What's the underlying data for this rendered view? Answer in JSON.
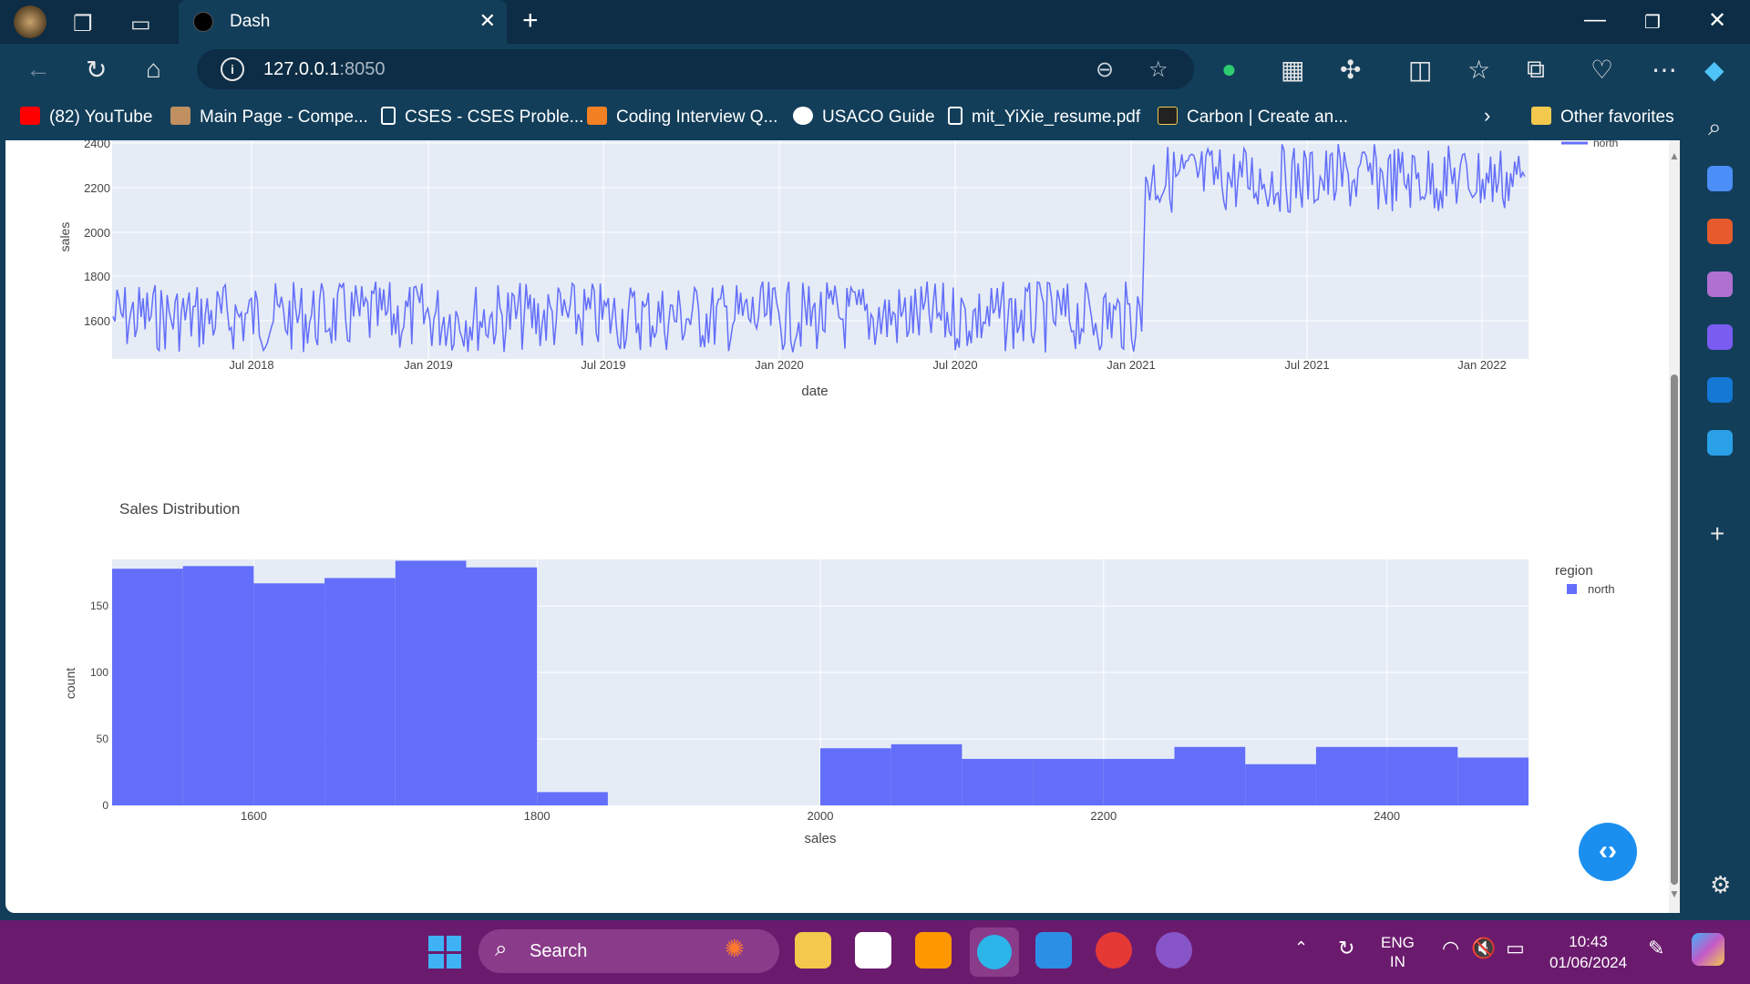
{
  "browser": {
    "tab_title": "Dash",
    "url_host": "127.0.0.1",
    "url_port": ":8050",
    "bookmarks": [
      {
        "label": "(82) YouTube",
        "color": "#ff0000"
      },
      {
        "label": "Main Page - Compe...",
        "color": "#c09060"
      },
      {
        "label": "CSES - CSES Proble...",
        "color": "#ffffff"
      },
      {
        "label": "Coding Interview Q...",
        "color": "#f48024"
      },
      {
        "label": "USACO Guide",
        "color": "#ffffff"
      },
      {
        "label": "mit_YiXie_resume.pdf",
        "color": "#ffffff"
      },
      {
        "label": "Carbon | Create an...",
        "color": "#f2c94c"
      }
    ],
    "other_favorites": "Other favorites"
  },
  "top_chart": {
    "ylabel": "sales",
    "xlabel": "date",
    "legend_item": "north",
    "y_ticks": [
      "2400",
      "2200",
      "2000",
      "1800",
      "1600"
    ],
    "x_ticks": [
      "Jul 2018",
      "Jan 2019",
      "Jul 2019",
      "Jan 2020",
      "Jul 2020",
      "Jan 2021",
      "Jul 2021",
      "Jan 2022"
    ]
  },
  "chart_data": {
    "type": "bar",
    "title": "Sales Distribution",
    "xlabel": "sales",
    "ylabel": "count",
    "legend_title": "region",
    "series": [
      {
        "name": "north",
        "color": "#636efa"
      }
    ],
    "bins": [
      {
        "x0": 1500,
        "x1": 1550,
        "count": 178
      },
      {
        "x0": 1550,
        "x1": 1600,
        "count": 180
      },
      {
        "x0": 1600,
        "x1": 1650,
        "count": 167
      },
      {
        "x0": 1650,
        "x1": 1700,
        "count": 171
      },
      {
        "x0": 1700,
        "x1": 1750,
        "count": 184
      },
      {
        "x0": 1750,
        "x1": 1800,
        "count": 179
      },
      {
        "x0": 1800,
        "x1": 1850,
        "count": 10
      },
      {
        "x0": 1850,
        "x1": 1900,
        "count": 0
      },
      {
        "x0": 1900,
        "x1": 1950,
        "count": 0
      },
      {
        "x0": 1950,
        "x1": 2000,
        "count": 0
      },
      {
        "x0": 2000,
        "x1": 2050,
        "count": 43
      },
      {
        "x0": 2050,
        "x1": 2100,
        "count": 46
      },
      {
        "x0": 2100,
        "x1": 2150,
        "count": 35
      },
      {
        "x0": 2150,
        "x1": 2200,
        "count": 35
      },
      {
        "x0": 2200,
        "x1": 2250,
        "count": 35
      },
      {
        "x0": 2250,
        "x1": 2300,
        "count": 44
      },
      {
        "x0": 2300,
        "x1": 2350,
        "count": 31
      },
      {
        "x0": 2350,
        "x1": 2400,
        "count": 44
      },
      {
        "x0": 2400,
        "x1": 2450,
        "count": 44
      },
      {
        "x0": 2450,
        "x1": 2500,
        "count": 36
      }
    ],
    "xlim": [
      1500,
      2500
    ],
    "ylim": [
      0,
      185
    ],
    "x_ticks": [
      1600,
      1800,
      2000,
      2200,
      2400
    ],
    "y_ticks": [
      0,
      50,
      100,
      150
    ]
  },
  "taskbar": {
    "search_label": "Search",
    "lang_line1": "ENG",
    "lang_line2": "IN",
    "time": "10:43",
    "date": "01/06/2024"
  }
}
